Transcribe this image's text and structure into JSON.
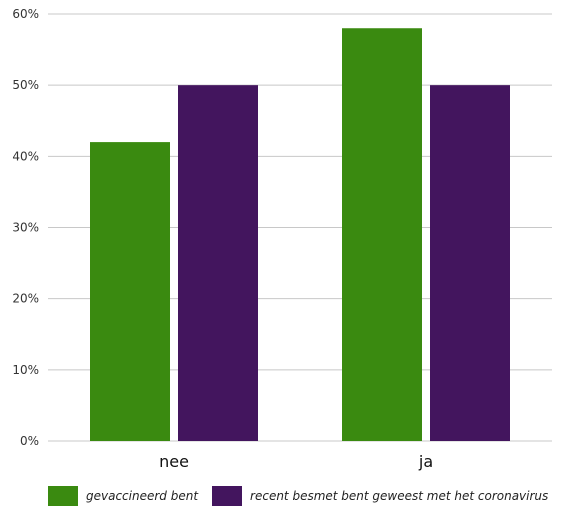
{
  "chart_data": {
    "type": "bar",
    "categories": [
      "nee",
      "ja"
    ],
    "series": [
      {
        "name": "gevaccineerd bent",
        "values": [
          42,
          58
        ],
        "color": "#3a8a10"
      },
      {
        "name": "recent besmet bent geweest met het coronavirus",
        "values": [
          50,
          50
        ],
        "color": "#43155e"
      }
    ],
    "ylim": [
      0,
      60
    ],
    "yticks": [
      0,
      10,
      20,
      30,
      40,
      50,
      60
    ],
    "ytick_labels": [
      "0%",
      "10%",
      "20%",
      "30%",
      "40%",
      "50%",
      "60%"
    ],
    "grid": true,
    "legend_position": "bottom-left"
  }
}
